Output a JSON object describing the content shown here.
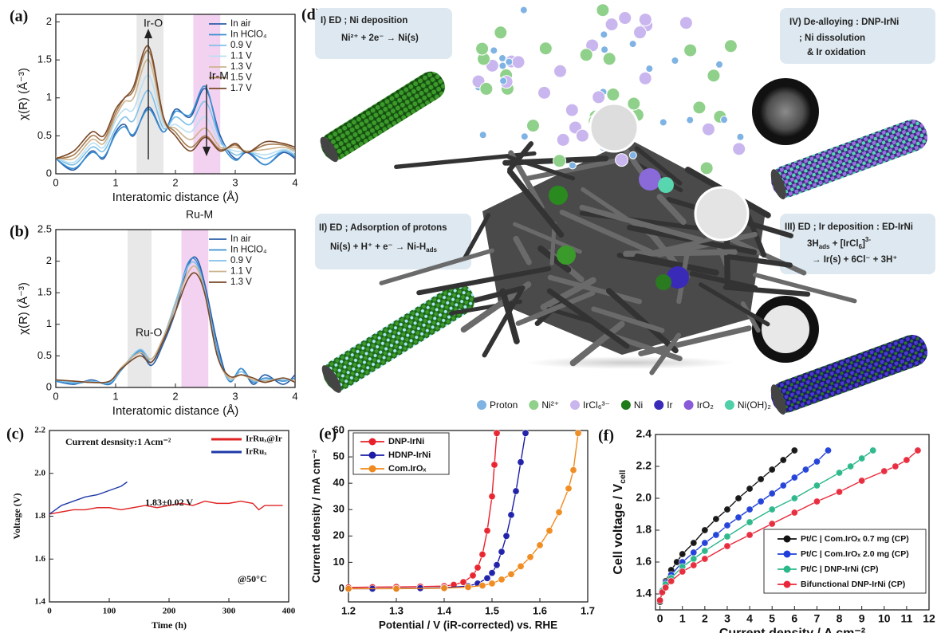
{
  "chart_data": [
    {
      "type": "line",
      "label": "(a)",
      "xlabel": "Interatomic distance (Å)",
      "ylabel": "χ(R) (Å⁻³)",
      "smooth": true,
      "x": [
        0,
        0.3,
        0.6,
        0.8,
        1.0,
        1.15,
        1.3,
        1.55,
        1.8,
        2.0,
        2.25,
        2.5,
        2.75,
        3.0,
        3.2,
        3.5,
        3.8,
        4.0
      ],
      "xlim": [
        0,
        4
      ],
      "xticks": [
        0,
        1,
        2,
        3,
        4
      ],
      "ylim": [
        0,
        2.1
      ],
      "yticks": [
        0,
        0.5,
        1,
        1.5,
        2
      ],
      "bands": [
        {
          "xlim": [
            1.35,
            1.8
          ],
          "color": "#e8e8e8"
        },
        {
          "xlim": [
            2.3,
            2.75
          ],
          "color": "#f2d2f0"
        }
      ],
      "annotations": [
        "Ir-O",
        "Ir-M"
      ],
      "legend": "top-right",
      "series": [
        {
          "name": "In air",
          "color": "#2a5ea8",
          "values": [
            0.2,
            0.05,
            0.3,
            0.2,
            0.55,
            0.65,
            0.5,
            0.88,
            0.55,
            0.85,
            0.75,
            1.12,
            0.5,
            0.2,
            0.28,
            0.12,
            0.28,
            0.2
          ]
        },
        {
          "name": "In HClO₄",
          "color": "#3a8fd2",
          "values": [
            0.2,
            0.07,
            0.28,
            0.22,
            0.52,
            0.62,
            0.52,
            0.85,
            0.55,
            0.82,
            0.78,
            1.15,
            0.45,
            0.18,
            0.3,
            0.12,
            0.3,
            0.22
          ]
        },
        {
          "name": "0.9 V",
          "color": "#7fc0ea",
          "values": [
            0.22,
            0.12,
            0.35,
            0.3,
            0.6,
            0.75,
            0.7,
            1.1,
            0.6,
            0.75,
            0.65,
            0.95,
            0.45,
            0.25,
            0.3,
            0.2,
            0.3,
            0.25
          ]
        },
        {
          "name": "1.1 V",
          "color": "#b9dff3",
          "values": [
            0.22,
            0.15,
            0.4,
            0.35,
            0.7,
            0.85,
            0.85,
            1.3,
            0.65,
            0.65,
            0.55,
            0.75,
            0.4,
            0.3,
            0.3,
            0.25,
            0.32,
            0.28
          ]
        },
        {
          "name": "1.3 V",
          "color": "#cdb38e",
          "values": [
            0.22,
            0.2,
            0.45,
            0.4,
            0.75,
            0.95,
            1.0,
            1.5,
            0.7,
            0.6,
            0.45,
            0.6,
            0.35,
            0.35,
            0.3,
            0.32,
            0.35,
            0.3
          ]
        },
        {
          "name": "1.5 V",
          "color": "#a47a4e",
          "values": [
            0.2,
            0.25,
            0.5,
            0.45,
            0.8,
            1.0,
            1.1,
            1.62,
            0.75,
            0.55,
            0.35,
            0.5,
            0.32,
            0.38,
            0.28,
            0.38,
            0.38,
            0.32
          ]
        },
        {
          "name": "1.7 V",
          "color": "#7a4826",
          "values": [
            0.2,
            0.3,
            0.55,
            0.5,
            0.85,
            1.0,
            1.15,
            1.68,
            0.75,
            0.5,
            0.3,
            0.48,
            0.3,
            0.4,
            0.28,
            0.42,
            0.4,
            0.35
          ]
        }
      ]
    },
    {
      "type": "line",
      "label": "(b)",
      "xlabel": "Interatomic distance (Å)",
      "ylabel": "χ(R) (Å⁻³)",
      "smooth": true,
      "x": [
        0,
        0.3,
        0.6,
        0.9,
        1.1,
        1.4,
        1.6,
        1.8,
        2.0,
        2.2,
        2.35,
        2.5,
        2.7,
        2.9,
        3.1,
        3.3,
        3.5,
        3.8,
        4.0
      ],
      "xlim": [
        0,
        4
      ],
      "xticks": [
        0,
        1,
        2,
        3,
        4
      ],
      "ylim": [
        0,
        2.5
      ],
      "yticks": [
        0,
        0.5,
        1,
        1.5,
        2,
        2.5
      ],
      "bands": [
        {
          "xlim": [
            1.2,
            1.6
          ],
          "color": "#e8e8e8"
        },
        {
          "xlim": [
            2.1,
            2.55
          ],
          "color": "#f2d2f0"
        }
      ],
      "annotations": [
        "Ru-M",
        "Ru-O"
      ],
      "legend": "top-right",
      "series": [
        {
          "name": "In air",
          "color": "#2a5ea8",
          "values": [
            0.1,
            0.05,
            0.12,
            0.05,
            0.3,
            0.55,
            0.35,
            0.7,
            1.2,
            1.9,
            2.05,
            1.6,
            0.7,
            0.1,
            0.3,
            0.05,
            0.2,
            0.05,
            0.2
          ]
        },
        {
          "name": "In HClO₄",
          "color": "#3a8fd2",
          "values": [
            0.1,
            0.06,
            0.1,
            0.06,
            0.28,
            0.58,
            0.4,
            0.75,
            1.3,
            1.95,
            2.0,
            1.5,
            0.6,
            0.1,
            0.3,
            0.08,
            0.15,
            0.1,
            0.15
          ]
        },
        {
          "name": "0.9 V",
          "color": "#7fc0ea",
          "values": [
            0.12,
            0.08,
            0.1,
            0.08,
            0.3,
            0.6,
            0.45,
            0.8,
            1.35,
            1.9,
            1.95,
            1.5,
            0.55,
            0.12,
            0.25,
            0.1,
            0.12,
            0.12,
            0.1
          ]
        },
        {
          "name": "1.1 V",
          "color": "#cdb38e",
          "values": [
            0.12,
            0.1,
            0.08,
            0.1,
            0.32,
            0.55,
            0.45,
            0.8,
            1.3,
            1.8,
            1.9,
            1.45,
            0.5,
            0.15,
            0.2,
            0.12,
            0.1,
            0.15,
            0.1
          ]
        },
        {
          "name": "1.3 V",
          "color": "#7a4826",
          "values": [
            0.12,
            0.1,
            0.08,
            0.1,
            0.3,
            0.5,
            0.4,
            0.75,
            1.2,
            1.7,
            1.8,
            1.45,
            0.5,
            0.18,
            0.2,
            0.15,
            0.08,
            0.15,
            0.08
          ]
        }
      ]
    },
    {
      "type": "line",
      "label": "(c)",
      "xlabel": "Time (h)",
      "ylabel": "Voltage (V)",
      "xlim": [
        0,
        400
      ],
      "xticks": [
        0,
        100,
        200,
        300,
        400
      ],
      "ylim": [
        1.4,
        2.2
      ],
      "yticks": [
        1.4,
        1.6,
        1.8,
        {
          "value": 2,
          "label": "2.0"
        },
        2.2
      ],
      "annotations": [
        "Current desnsity:1 Acm⁻²",
        "1.83±0.02 V",
        "@50°C"
      ],
      "legend": "top-right",
      "series": [
        {
          "name": "IrRuₓ@Ir",
          "color": "#e02424",
          "x": [
            0,
            20,
            40,
            60,
            80,
            100,
            120,
            140,
            160,
            180,
            200,
            220,
            240,
            260,
            280,
            300,
            320,
            340,
            350,
            360,
            380,
            390
          ],
          "values": [
            1.81,
            1.82,
            1.83,
            1.83,
            1.84,
            1.84,
            1.83,
            1.84,
            1.85,
            1.84,
            1.85,
            1.86,
            1.85,
            1.87,
            1.86,
            1.86,
            1.87,
            1.86,
            1.83,
            1.85,
            1.85,
            1.85
          ]
        },
        {
          "name": "IrRuₓ",
          "color": "#1f3aa8",
          "x": [
            0,
            20,
            40,
            60,
            80,
            100,
            120,
            130
          ],
          "values": [
            1.81,
            1.85,
            1.87,
            1.89,
            1.9,
            1.92,
            1.94,
            1.96
          ]
        }
      ]
    },
    {
      "type": "line",
      "label": "(e)",
      "xlabel": "Potential / V (iR-corrected) vs. RHE",
      "ylabel": "Current density / mA cm⁻²",
      "markers": true,
      "xlim": [
        1.2,
        1.7
      ],
      "xticks": [
        1.2,
        1.3,
        1.4,
        1.5,
        1.6,
        1.7
      ],
      "ylim": [
        -5,
        60
      ],
      "yticks": [
        0,
        10,
        20,
        30,
        40,
        50,
        60
      ],
      "legend": "top-left",
      "series": [
        {
          "name": "DNP-IrNi",
          "color": "#e8202a",
          "x": [
            1.2,
            1.25,
            1.3,
            1.35,
            1.4,
            1.42,
            1.44,
            1.46,
            1.47,
            1.48,
            1.49,
            1.5,
            1.505,
            1.51
          ],
          "values": [
            0.5,
            0.6,
            0.7,
            0.8,
            1,
            1.5,
            2.5,
            5,
            8,
            13,
            22,
            35,
            47,
            59
          ]
        },
        {
          "name": "HDNP-IrNi",
          "color": "#1c1ca8",
          "x": [
            1.2,
            1.25,
            1.3,
            1.35,
            1.4,
            1.45,
            1.47,
            1.49,
            1.5,
            1.51,
            1.52,
            1.53,
            1.54,
            1.55,
            1.56,
            1.57
          ],
          "values": [
            0,
            0,
            0.1,
            0.2,
            0.4,
            1,
            2,
            4,
            6,
            9,
            14,
            20,
            28,
            37,
            48,
            59
          ]
        },
        {
          "name": "Com.IrOₓ",
          "color": "#f08a1c",
          "x": [
            1.2,
            1.3,
            1.4,
            1.45,
            1.48,
            1.5,
            1.52,
            1.54,
            1.56,
            1.58,
            1.6,
            1.62,
            1.64,
            1.66,
            1.67,
            1.68
          ],
          "values": [
            0,
            0,
            0.2,
            0.6,
            1.2,
            2,
            3.5,
            5.5,
            8.5,
            12,
            16.5,
            22,
            29,
            38,
            45,
            59
          ]
        }
      ]
    },
    {
      "type": "line",
      "label": "(f)",
      "xlabel": "Current density / A cm⁻²",
      "ylabel": "Cell voltage / V",
      "ylabel_sub": "cell",
      "markers": true,
      "xlim": [
        -0.2,
        12
      ],
      "xticks": [
        0,
        1,
        2,
        3,
        4,
        5,
        6,
        7,
        8,
        9,
        10,
        11,
        12
      ],
      "ylim": [
        1.3,
        2.4
      ],
      "yticks": [
        1.4,
        1.6,
        1.8,
        {
          "value": 2,
          "label": "2.0"
        },
        2.2,
        2.4
      ],
      "legend": "bottom-right",
      "series": [
        {
          "name": "Pt/C | Com.IrOₓ 0.7 mg (CP)",
          "color": "#111111",
          "x": [
            0,
            0.1,
            0.25,
            0.5,
            0.75,
            1,
            1.5,
            2,
            2.5,
            3,
            3.5,
            4,
            4.5,
            5,
            5.5,
            6
          ],
          "values": [
            1.35,
            1.42,
            1.48,
            1.55,
            1.6,
            1.65,
            1.72,
            1.8,
            1.87,
            1.93,
            2.0,
            2.06,
            2.12,
            2.18,
            2.24,
            2.3
          ]
        },
        {
          "name": "Pt/C | Com.IrOₓ 2.0 mg (CP)",
          "color": "#1f3fd8",
          "x": [
            0,
            0.1,
            0.25,
            0.5,
            1,
            1.5,
            2,
            2.5,
            3,
            3.5,
            4,
            4.5,
            5,
            5.5,
            6,
            6.5,
            7,
            7.5
          ],
          "values": [
            1.36,
            1.42,
            1.47,
            1.52,
            1.6,
            1.66,
            1.72,
            1.77,
            1.83,
            1.88,
            1.93,
            1.98,
            2.03,
            2.08,
            2.13,
            2.18,
            2.23,
            2.3
          ]
        },
        {
          "name": "Pt/C | DNP-IrNi (CP)",
          "color": "#2ab78a",
          "x": [
            0,
            0.1,
            0.25,
            0.5,
            1,
            1.5,
            2,
            3,
            4,
            5,
            6,
            7,
            8,
            8.5,
            9,
            9.5
          ],
          "values": [
            1.36,
            1.42,
            1.46,
            1.5,
            1.57,
            1.62,
            1.67,
            1.76,
            1.85,
            1.93,
            2.0,
            2.08,
            2.16,
            2.2,
            2.25,
            2.3
          ]
        },
        {
          "name": "Bifunctional DNP-IrNi (CP)",
          "color": "#e8283a",
          "x": [
            0,
            0.1,
            0.25,
            0.5,
            1,
            1.5,
            2,
            3,
            4,
            5,
            6,
            7,
            8,
            9,
            10,
            10.5,
            11,
            11.5
          ],
          "values": [
            1.36,
            1.41,
            1.44,
            1.48,
            1.54,
            1.58,
            1.62,
            1.7,
            1.77,
            1.84,
            1.91,
            1.98,
            2.04,
            2.11,
            2.17,
            2.2,
            2.24,
            2.3
          ]
        }
      ]
    }
  ],
  "diagram": {
    "label": "(d)",
    "steps": [
      {
        "title": "I) ED ; Ni deposition",
        "lines": [
          [
            "Ni²⁺ + 2e⁻ → Ni(s)"
          ]
        ]
      },
      {
        "title": "II) ED ; Adsorption of protons",
        "lines": [
          [
            "Ni(s) + H⁺ + e⁻ → Ni-H",
            "ads"
          ]
        ]
      },
      {
        "title": "III) ED ; Ir deposition : ED-IrNi",
        "lines": [
          [
            "3H",
            "ads",
            " + [IrCl",
            "6",
            "]",
            "3-"
          ],
          [
            "→ Ir(s) + 6Cl⁻ + 3H⁺"
          ]
        ]
      },
      {
        "title": "IV) De-alloying : DNP-IrNi",
        "lines": [
          [
            "; Ni dissolution"
          ],
          [
            "& Ir oxidation"
          ]
        ]
      }
    ],
    "legend": [
      {
        "name": "Proton",
        "color": "#7fb3e3"
      },
      {
        "name": "Ni²⁺",
        "color": "#8fd08a"
      },
      {
        "name": "IrCl₆³⁻",
        "color": "#c9b6ee"
      },
      {
        "name": "Ni",
        "color": "#1f7a1a"
      },
      {
        "name": "Ir",
        "color": "#3a2ab8"
      },
      {
        "name": "IrO₂",
        "color": "#8a5ad8"
      },
      {
        "name": "Ni(OH)₂",
        "color": "#4fd0a8"
      }
    ]
  }
}
